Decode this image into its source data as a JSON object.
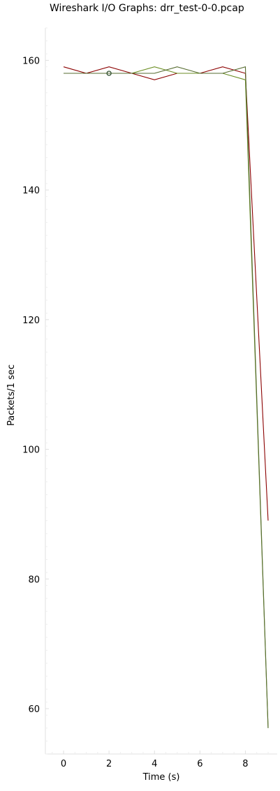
{
  "chart_data": {
    "type": "line",
    "title": "Wireshark I/O Graphs: drr_test-0-0.pcap",
    "xlabel": "Time (s)",
    "ylabel": "Packets/1 sec",
    "xlim": [
      -0.8,
      9.4
    ],
    "ylim": [
      53,
      165
    ],
    "xticks": [
      0,
      2,
      4,
      6,
      8
    ],
    "yticks": [
      60,
      80,
      100,
      120,
      140,
      160
    ],
    "x": [
      0,
      1,
      2,
      3,
      4,
      5,
      6,
      7,
      8,
      9
    ],
    "grid": false,
    "legend": "none",
    "series": [
      {
        "color": "#8b0000",
        "values": [
          159,
          158,
          159,
          158,
          157,
          158,
          158,
          159,
          158,
          89
        ]
      },
      {
        "color": "#6b8e23",
        "values": [
          158,
          158,
          158,
          158,
          159,
          158,
          158,
          158,
          157,
          57
        ]
      },
      {
        "color": "#556b2f",
        "values": [
          158,
          158,
          158,
          158,
          158,
          159,
          158,
          158,
          159,
          57
        ]
      }
    ],
    "markers": [
      {
        "x": 2,
        "y": 158,
        "color": "#2f4f2f"
      }
    ]
  }
}
